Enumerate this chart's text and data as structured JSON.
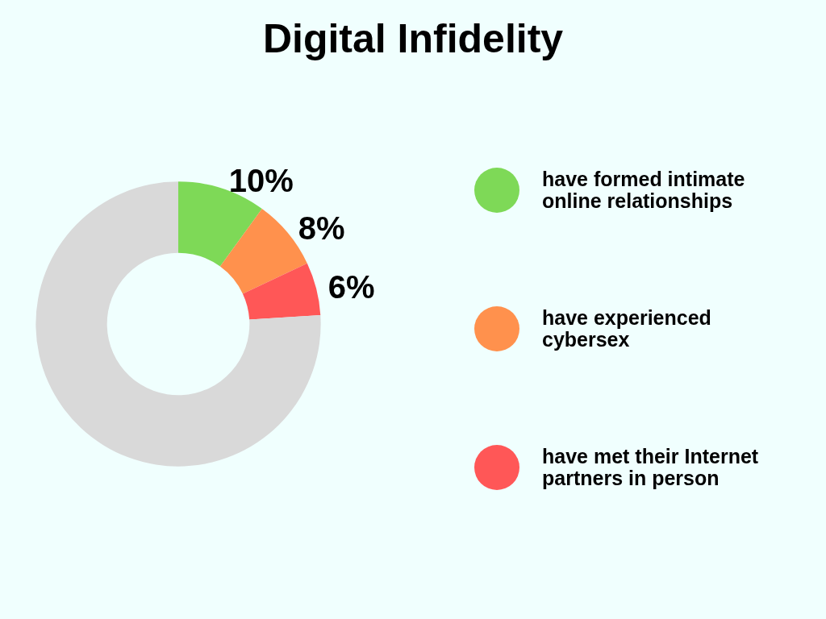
{
  "chart_data": {
    "type": "donut",
    "title": "Digital Infidelity",
    "categories": [
      "have formed intimate online relationships",
      "have experienced cybersex",
      "have met their Internet partners in person",
      null
    ],
    "values": [
      10,
      8,
      6,
      76
    ],
    "colors": [
      "#7ed957",
      "#ff914d",
      "#ff5757",
      "#d9d9d9"
    ],
    "value_labels": [
      "10%",
      "8%",
      "6%",
      null
    ],
    "legend": "right"
  }
}
